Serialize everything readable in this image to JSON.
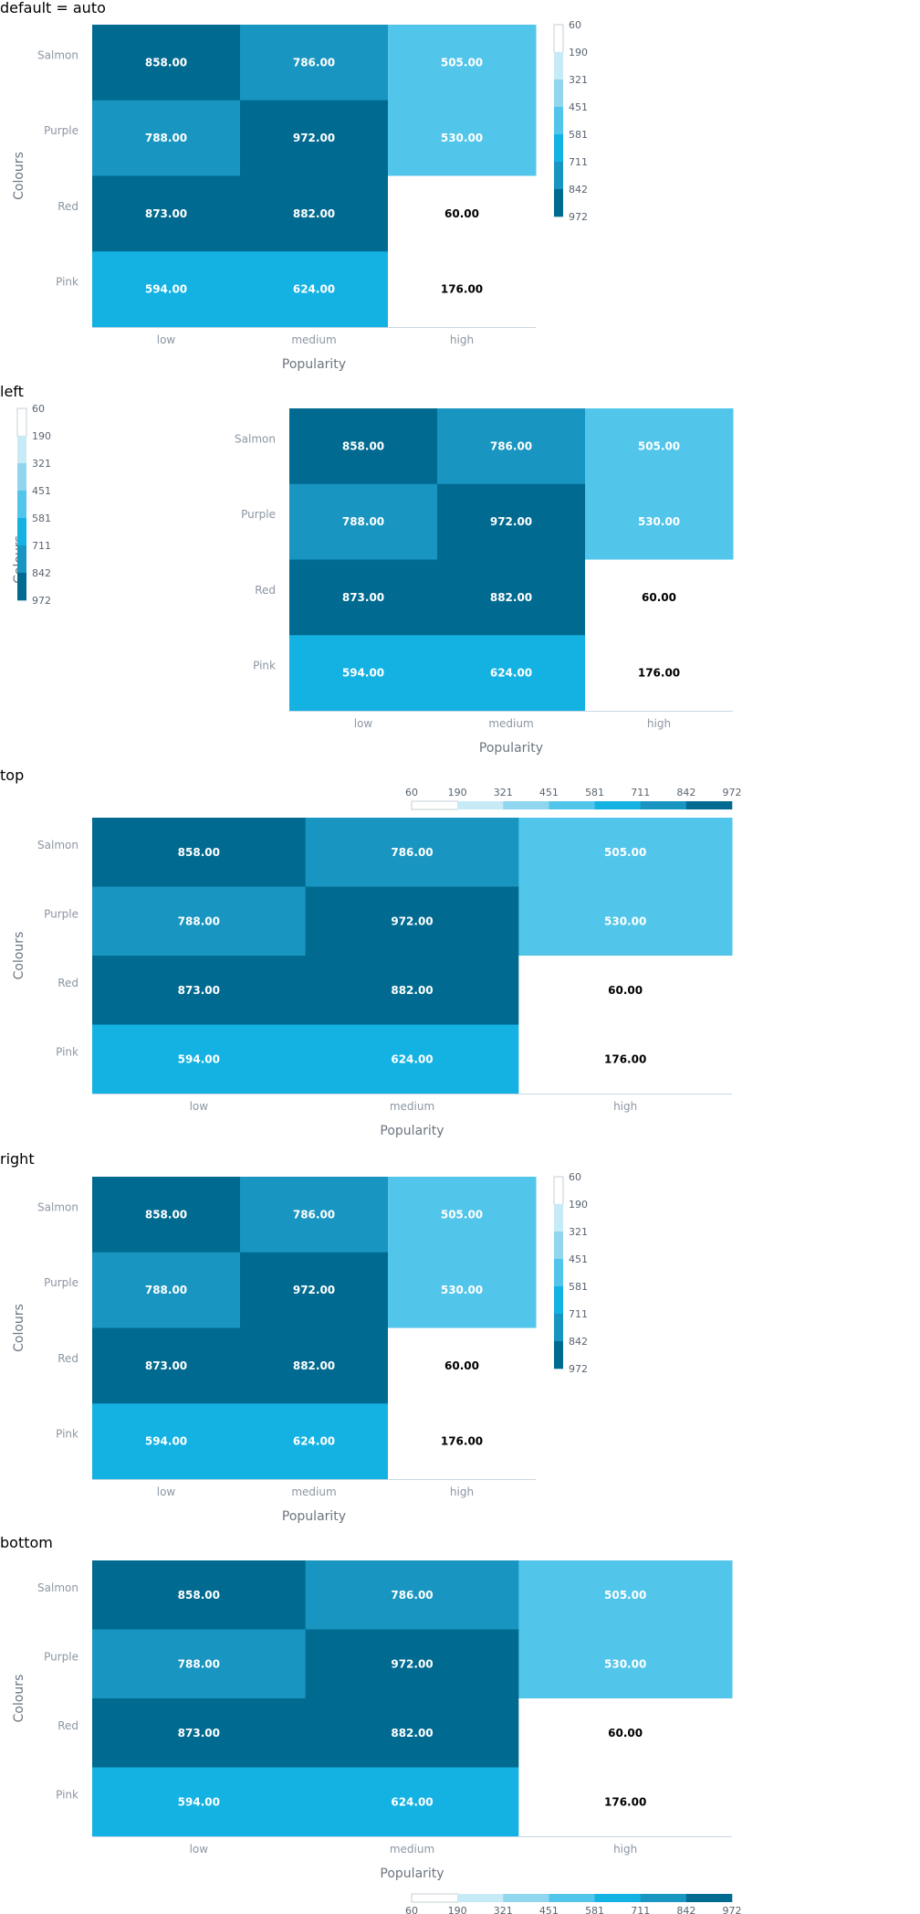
{
  "chart_data": [
    {
      "type": "heatmap",
      "title": "default = auto",
      "legend_position": "auto",
      "xlabel": "Popularity",
      "ylabel": "Colours",
      "x": [
        "low",
        "medium",
        "high"
      ],
      "y": [
        "Salmon",
        "Purple",
        "Red",
        "Pink"
      ],
      "values": [
        [
          858,
          786,
          505
        ],
        [
          788,
          972,
          530
        ],
        [
          873,
          882,
          60
        ],
        [
          594,
          624,
          176
        ]
      ],
      "value_labels": [
        [
          "858.00",
          "786.00",
          "505.00"
        ],
        [
          "788.00",
          "972.00",
          "530.00"
        ],
        [
          "873.00",
          "882.00",
          "60.00"
        ],
        [
          "594.00",
          "624.00",
          "176.00"
        ]
      ],
      "legend_ticks": [
        "60",
        "190",
        "321",
        "451",
        "581",
        "711",
        "842",
        "972"
      ]
    },
    {
      "type": "heatmap",
      "title": "left",
      "legend_position": "left",
      "xlabel": "Popularity",
      "ylabel": "Colours",
      "x": [
        "low",
        "medium",
        "high"
      ],
      "y": [
        "Salmon",
        "Purple",
        "Red",
        "Pink"
      ],
      "values": [
        [
          858,
          786,
          505
        ],
        [
          788,
          972,
          530
        ],
        [
          873,
          882,
          60
        ],
        [
          594,
          624,
          176
        ]
      ],
      "value_labels": [
        [
          "858.00",
          "786.00",
          "505.00"
        ],
        [
          "788.00",
          "972.00",
          "530.00"
        ],
        [
          "873.00",
          "882.00",
          "60.00"
        ],
        [
          "594.00",
          "624.00",
          "176.00"
        ]
      ],
      "legend_ticks": [
        "60",
        "190",
        "321",
        "451",
        "581",
        "711",
        "842",
        "972"
      ]
    },
    {
      "type": "heatmap",
      "title": "top",
      "legend_position": "top",
      "xlabel": "Popularity",
      "ylabel": "Colours",
      "x": [
        "low",
        "medium",
        "high"
      ],
      "y": [
        "Salmon",
        "Purple",
        "Red",
        "Pink"
      ],
      "values": [
        [
          858,
          786,
          505
        ],
        [
          788,
          972,
          530
        ],
        [
          873,
          882,
          60
        ],
        [
          594,
          624,
          176
        ]
      ],
      "value_labels": [
        [
          "858.00",
          "786.00",
          "505.00"
        ],
        [
          "788.00",
          "972.00",
          "530.00"
        ],
        [
          "873.00",
          "882.00",
          "60.00"
        ],
        [
          "594.00",
          "624.00",
          "176.00"
        ]
      ],
      "legend_ticks": [
        "60",
        "190",
        "321",
        "451",
        "581",
        "711",
        "842",
        "972"
      ]
    },
    {
      "type": "heatmap",
      "title": "right",
      "legend_position": "right",
      "xlabel": "Popularity",
      "ylabel": "Colours",
      "x": [
        "low",
        "medium",
        "high"
      ],
      "y": [
        "Salmon",
        "Purple",
        "Red",
        "Pink"
      ],
      "values": [
        [
          858,
          786,
          505
        ],
        [
          788,
          972,
          530
        ],
        [
          873,
          882,
          60
        ],
        [
          594,
          624,
          176
        ]
      ],
      "value_labels": [
        [
          "858.00",
          "786.00",
          "505.00"
        ],
        [
          "788.00",
          "972.00",
          "530.00"
        ],
        [
          "873.00",
          "882.00",
          "60.00"
        ],
        [
          "594.00",
          "624.00",
          "176.00"
        ]
      ],
      "legend_ticks": [
        "60",
        "190",
        "321",
        "451",
        "581",
        "711",
        "842",
        "972"
      ]
    },
    {
      "type": "heatmap",
      "title": "bottom",
      "legend_position": "bottom",
      "xlabel": "Popularity",
      "ylabel": "Colours",
      "x": [
        "low",
        "medium",
        "high"
      ],
      "y": [
        "Salmon",
        "Purple",
        "Red",
        "Pink"
      ],
      "values": [
        [
          858,
          786,
          505
        ],
        [
          788,
          972,
          530
        ],
        [
          873,
          882,
          60
        ],
        [
          594,
          624,
          176
        ]
      ],
      "value_labels": [
        [
          "858.00",
          "786.00",
          "505.00"
        ],
        [
          "788.00",
          "972.00",
          "530.00"
        ],
        [
          "873.00",
          "882.00",
          "60.00"
        ],
        [
          "594.00",
          "624.00",
          "176.00"
        ]
      ],
      "legend_ticks": [
        "60",
        "190",
        "321",
        "451",
        "581",
        "711",
        "842",
        "972"
      ]
    }
  ],
  "colors": {
    "scale": [
      "#ffffff",
      "#c7ebf6",
      "#8fd6ee",
      "#52c5ea",
      "#13b2e3",
      "#1895c0",
      "#006a90"
    ],
    "axis_line": "#c8d7e3",
    "dark_label": "#000000",
    "light_label": "#ffffff"
  }
}
